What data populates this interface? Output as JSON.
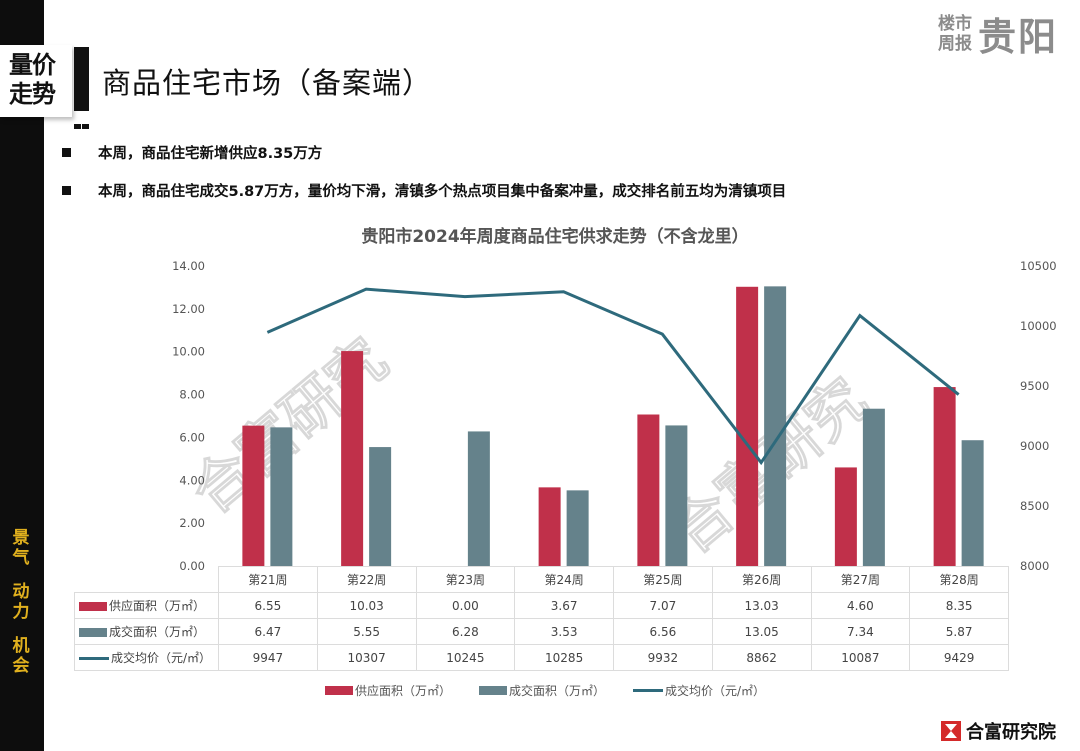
{
  "brand": {
    "small_line1": "楼市",
    "small_line2": "周报",
    "city": "贵阳"
  },
  "section_tag": {
    "line1": "量价",
    "line2": "走势"
  },
  "page_title": "商品住宅市场（备案端）",
  "side_labels": [
    "景气",
    "动力",
    "机会"
  ],
  "bullets": [
    "本周，商品住宅新增供应8.35万方",
    "本周，商品住宅成交5.87万方，量价均下滑，清镇多个热点项目集中备案冲量，成交排名前五均为清镇项目"
  ],
  "watermark": "合富研究",
  "logo": {
    "text": "合富研究院"
  },
  "colors": {
    "supply": "#c0304a",
    "deal": "#65828b",
    "price": "#2e6a7c",
    "side_text": "#e0b01e"
  },
  "chart_data": {
    "type": "bar",
    "title": "贵阳市2024年周度商品住宅供求走势（不含龙里）",
    "categories": [
      "第21周",
      "第22周",
      "第23周",
      "第24周",
      "第25周",
      "第26周",
      "第27周",
      "第28周"
    ],
    "series": [
      {
        "name": "供应面积（万㎡）",
        "type": "bar",
        "axis": "left",
        "values": [
          6.55,
          10.03,
          0.0,
          3.67,
          7.07,
          13.03,
          4.6,
          8.35
        ],
        "display": [
          "6.55",
          "10.03",
          "0.00",
          "3.67",
          "7.07",
          "13.03",
          "4.60",
          "8.35"
        ]
      },
      {
        "name": "成交面积（万㎡）",
        "type": "bar",
        "axis": "left",
        "values": [
          6.47,
          5.55,
          6.28,
          3.53,
          6.56,
          13.05,
          7.34,
          5.87
        ],
        "display": [
          "6.47",
          "5.55",
          "6.28",
          "3.53",
          "6.56",
          "13.05",
          "7.34",
          "5.87"
        ]
      },
      {
        "name": "成交均价（元/㎡）",
        "type": "line",
        "axis": "right",
        "values": [
          9947,
          10307,
          10245,
          10285,
          9932,
          8862,
          10087,
          9429
        ],
        "display": [
          "9947",
          "10307",
          "10245",
          "10285",
          "9932",
          "8862",
          "10087",
          "9429"
        ]
      }
    ],
    "y_left": {
      "ticks": [
        "0.00",
        "2.00",
        "4.00",
        "6.00",
        "8.00",
        "10.00",
        "12.00",
        "14.00"
      ],
      "range": [
        0,
        14
      ]
    },
    "y_right": {
      "ticks": [
        "8000",
        "8500",
        "9000",
        "9500",
        "10000",
        "10500"
      ],
      "range": [
        8000,
        10500
      ]
    },
    "legend_position": "bottom",
    "grid": false,
    "data_table": true
  }
}
